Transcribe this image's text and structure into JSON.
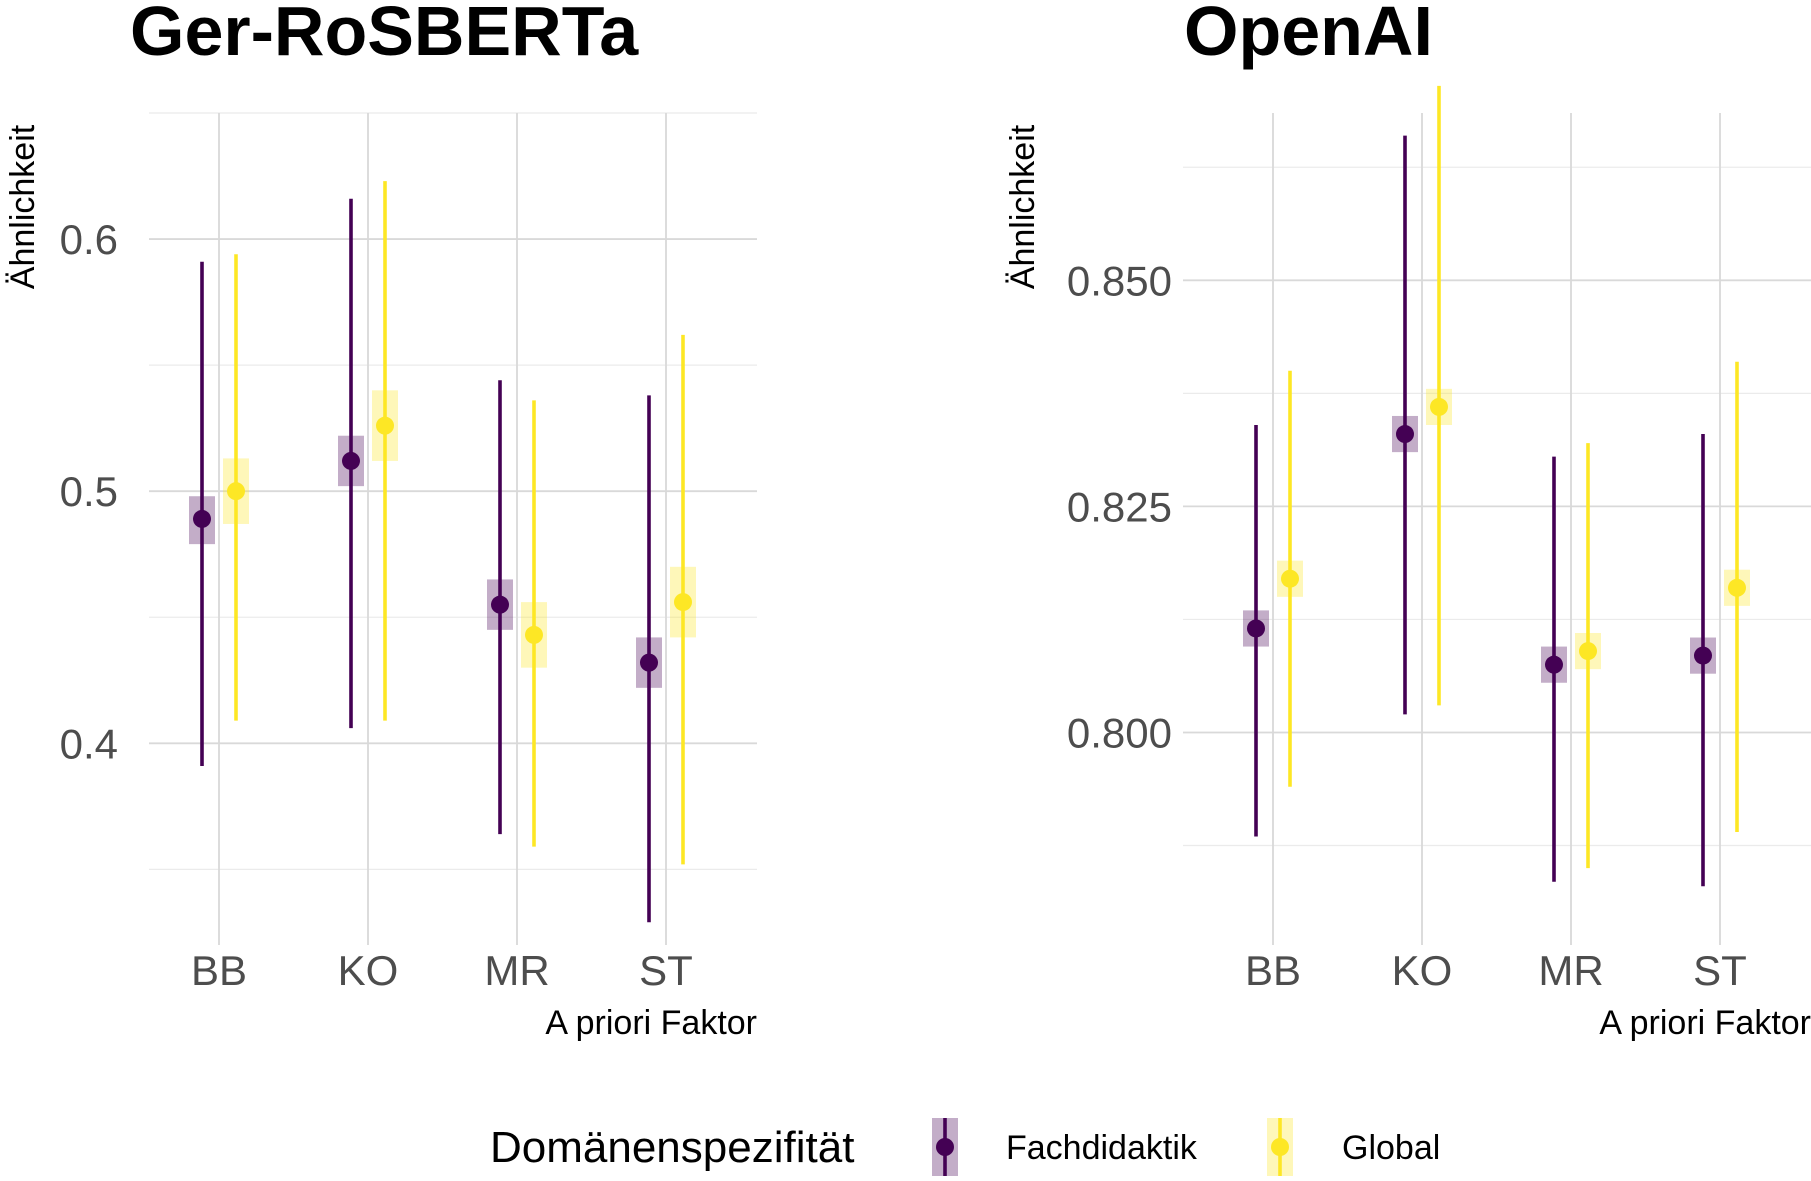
{
  "chart_data": [
    {
      "type": "scatter",
      "title": "Ger-RoSBERTa",
      "xlabel": "A priori Faktor",
      "ylabel": "Ähnlichkeit",
      "categories": [
        "BB",
        "KO",
        "MR",
        "ST"
      ],
      "ylim": [
        0.32,
        0.65
      ],
      "yticks": [
        0.4,
        0.5,
        0.6
      ],
      "ytick_labels": [
        "0.4",
        "0.5",
        "0.6"
      ],
      "grid": true,
      "series": [
        {
          "name": "Fachdidaktik",
          "color": "#440154",
          "values": [
            0.489,
            0.512,
            0.455,
            0.432
          ],
          "ci_low": [
            0.391,
            0.406,
            0.364,
            0.329
          ],
          "ci_high": [
            0.591,
            0.616,
            0.544,
            0.538
          ],
          "se_low": [
            0.479,
            0.502,
            0.445,
            0.422
          ],
          "se_high": [
            0.498,
            0.522,
            0.465,
            0.442
          ]
        },
        {
          "name": "Global",
          "color": "#FDE725",
          "values": [
            0.5,
            0.526,
            0.443,
            0.456
          ],
          "ci_low": [
            0.409,
            0.409,
            0.359,
            0.352
          ],
          "ci_high": [
            0.594,
            0.623,
            0.536,
            0.562
          ],
          "se_low": [
            0.487,
            0.512,
            0.43,
            0.442
          ],
          "se_high": [
            0.513,
            0.54,
            0.456,
            0.47
          ]
        }
      ]
    },
    {
      "type": "scatter",
      "title": "OpenAI",
      "xlabel": "A priori Faktor",
      "ylabel": "Ähnlichkeit",
      "categories": [
        "BB",
        "KO",
        "MR",
        "ST"
      ],
      "ylim": [
        0.7765,
        0.8685
      ],
      "yticks": [
        0.8,
        0.825,
        0.85
      ],
      "ytick_labels": [
        "0.800",
        "0.825",
        "0.850"
      ],
      "grid": true,
      "series": [
        {
          "name": "Fachdidaktik",
          "color": "#440154",
          "values": [
            0.8115,
            0.833,
            0.8075,
            0.8085
          ],
          "ci_low": [
            0.7885,
            0.802,
            0.7835,
            0.783
          ],
          "ci_high": [
            0.834,
            0.866,
            0.8305,
            0.833
          ],
          "se_low": [
            0.8095,
            0.831,
            0.8055,
            0.8065
          ],
          "se_high": [
            0.8135,
            0.835,
            0.8095,
            0.8105
          ]
        },
        {
          "name": "Global",
          "color": "#FDE725",
          "values": [
            0.817,
            0.836,
            0.809,
            0.816
          ],
          "ci_low": [
            0.794,
            0.803,
            0.785,
            0.789
          ],
          "ci_high": [
            0.84,
            0.8715,
            0.832,
            0.841
          ],
          "se_low": [
            0.815,
            0.834,
            0.807,
            0.814
          ],
          "se_high": [
            0.819,
            0.838,
            0.811,
            0.818
          ]
        }
      ]
    }
  ],
  "legend": {
    "title": "Domänenspezifität",
    "position": "bottom",
    "items": [
      {
        "label": "Fachdidaktik",
        "color": "#440154"
      },
      {
        "label": "Global",
        "color": "#FDE725"
      }
    ]
  }
}
